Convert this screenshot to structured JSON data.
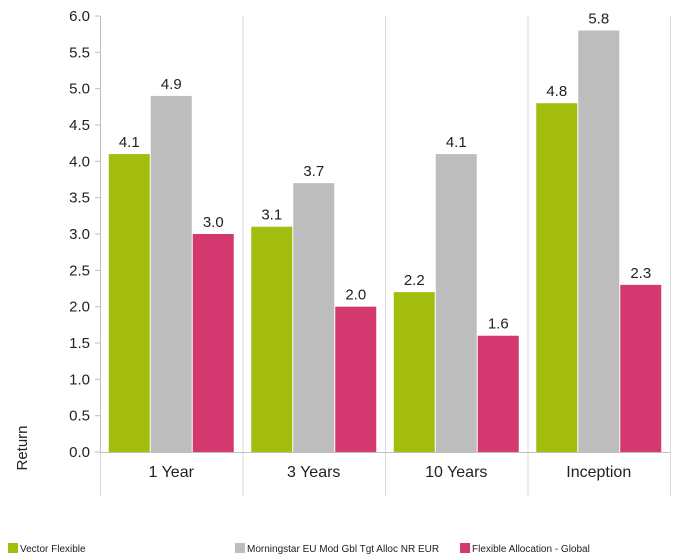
{
  "chart_data": {
    "type": "bar",
    "title": "",
    "xlabel": "",
    "ylabel": "Return",
    "ylim": [
      0,
      6
    ],
    "yticks": [
      "0.0",
      "0.5",
      "1.0",
      "1.5",
      "2.0",
      "2.5",
      "3.0",
      "3.5",
      "4.0",
      "4.5",
      "5.0",
      "5.5",
      "6.0"
    ],
    "grid": "vertical",
    "legend_position": "bottom",
    "categories": [
      "1 Year",
      "3 Years",
      "10 Years",
      "Inception"
    ],
    "series": [
      {
        "name": "Vector Flexible",
        "color": "#a3bd0f",
        "values": [
          4.1,
          3.1,
          2.2,
          4.8
        ],
        "labels": [
          "4.1",
          "3.1",
          "2.2",
          "4.8"
        ]
      },
      {
        "name": "Morningstar EU Mod Gbl Tgt Alloc NR EUR",
        "color": "#bdbdbd",
        "values": [
          4.9,
          3.7,
          4.1,
          5.8
        ],
        "labels": [
          "4.9",
          "3.7",
          "4.1",
          "5.8"
        ]
      },
      {
        "name": "Flexible Allocation - Global",
        "color": "#d3386f",
        "values": [
          3.0,
          2.0,
          1.6,
          2.3
        ],
        "labels": [
          "3.0",
          "2.0",
          "1.6",
          "2.3"
        ]
      }
    ]
  }
}
